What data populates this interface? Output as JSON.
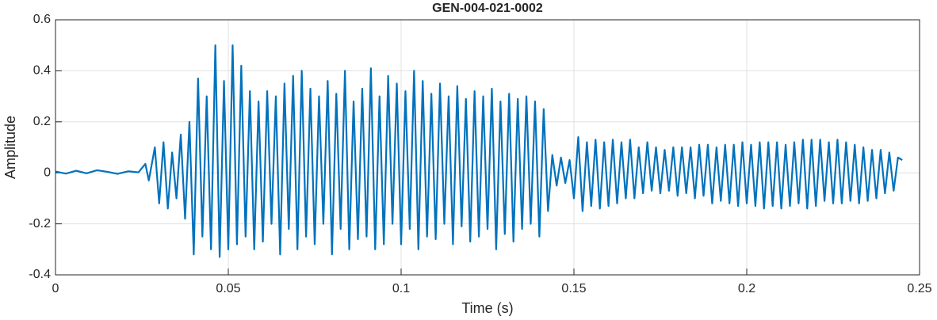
{
  "chart_data": {
    "type": "line",
    "title": "GEN-004-021-0002",
    "xlabel": "Time (s)",
    "ylabel": "Amplitude",
    "color": "#0072bd",
    "grid": true,
    "xlim": [
      0,
      0.25
    ],
    "ylim": [
      -0.4,
      0.6
    ],
    "xticks": [
      0,
      0.05,
      0.1,
      0.15,
      0.2,
      0.25
    ],
    "yticks": [
      -0.4,
      -0.2,
      0,
      0.2,
      0.4,
      0.6
    ],
    "x": [
      0,
      0.003,
      0.006,
      0.009,
      0.012,
      0.015,
      0.018,
      0.021,
      0.024,
      0.026,
      0.027,
      0.02875,
      0.03,
      0.03125,
      0.0325,
      0.03375,
      0.035,
      0.03625,
      0.0375,
      0.03875,
      0.04,
      0.04125,
      0.0425,
      0.04375,
      0.045,
      0.04625,
      0.0475,
      0.04875,
      0.05,
      0.05125,
      0.0525,
      0.05375,
      0.055,
      0.05625,
      0.0575,
      0.05875,
      0.06,
      0.06125,
      0.0625,
      0.06375,
      0.065,
      0.06625,
      0.0675,
      0.06875,
      0.07,
      0.07125,
      0.0725,
      0.07375,
      0.075,
      0.07625,
      0.0775,
      0.07875,
      0.08,
      0.08125,
      0.0825,
      0.08375,
      0.085,
      0.08625,
      0.0875,
      0.08875,
      0.09,
      0.09125,
      0.0925,
      0.09375,
      0.095,
      0.09625,
      0.0975,
      0.09875,
      0.1,
      0.10125,
      0.1025,
      0.10375,
      0.105,
      0.10625,
      0.1075,
      0.10875,
      0.11,
      0.11125,
      0.1125,
      0.11375,
      0.115,
      0.11625,
      0.1175,
      0.11875,
      0.12,
      0.12125,
      0.1225,
      0.12375,
      0.125,
      0.12625,
      0.1275,
      0.12875,
      0.13,
      0.13125,
      0.1325,
      0.13375,
      0.135,
      0.13625,
      0.1375,
      0.13875,
      0.14,
      0.14125,
      0.1425,
      0.14375,
      0.145,
      0.14625,
      0.1475,
      0.14875,
      0.15,
      0.15125,
      0.1525,
      0.15375,
      0.155,
      0.15625,
      0.1575,
      0.15875,
      0.16,
      0.16125,
      0.1625,
      0.16375,
      0.165,
      0.16625,
      0.1675,
      0.16875,
      0.17,
      0.17125,
      0.1725,
      0.17375,
      0.175,
      0.17625,
      0.1775,
      0.17875,
      0.18,
      0.18125,
      0.1825,
      0.18375,
      0.185,
      0.18625,
      0.1875,
      0.18875,
      0.19,
      0.19125,
      0.1925,
      0.19375,
      0.195,
      0.19625,
      0.1975,
      0.19875,
      0.2,
      0.20125,
      0.2025,
      0.20375,
      0.205,
      0.20625,
      0.2075,
      0.20875,
      0.21,
      0.21125,
      0.2125,
      0.21375,
      0.215,
      0.21625,
      0.2175,
      0.21875,
      0.22,
      0.22125,
      0.2225,
      0.22375,
      0.225,
      0.22625,
      0.2275,
      0.22875,
      0.23,
      0.23125,
      0.2325,
      0.23375,
      0.235,
      0.23625,
      0.2375,
      0.23875,
      0.24,
      0.24125,
      0.2425,
      0.24375,
      0.245
    ],
    "values": [
      0.005,
      -0.003,
      0.008,
      -0.002,
      0.01,
      0.004,
      -0.004,
      0.006,
      0.002,
      0.035,
      -0.03,
      0.1,
      -0.12,
      0.12,
      -0.14,
      0.08,
      -0.1,
      0.15,
      -0.18,
      0.2,
      -0.32,
      0.37,
      -0.25,
      0.3,
      -0.3,
      0.5,
      -0.33,
      0.36,
      -0.3,
      0.5,
      -0.28,
      0.42,
      -0.25,
      0.32,
      -0.3,
      0.28,
      -0.27,
      0.32,
      -0.2,
      0.3,
      -0.32,
      0.35,
      -0.22,
      0.38,
      -0.3,
      0.4,
      -0.25,
      0.33,
      -0.28,
      0.3,
      -0.2,
      0.36,
      -0.32,
      0.31,
      -0.22,
      0.4,
      -0.3,
      0.28,
      -0.26,
      0.33,
      -0.25,
      0.41,
      -0.3,
      0.3,
      -0.28,
      0.38,
      -0.2,
      0.35,
      -0.28,
      0.32,
      -0.22,
      0.4,
      -0.3,
      0.36,
      -0.25,
      0.31,
      -0.26,
      0.35,
      -0.2,
      0.3,
      -0.28,
      0.34,
      -0.21,
      0.29,
      -0.27,
      0.32,
      -0.25,
      0.3,
      -0.22,
      0.33,
      -0.3,
      0.28,
      -0.24,
      0.31,
      -0.27,
      0.29,
      -0.22,
      0.3,
      -0.2,
      0.28,
      -0.25,
      0.25,
      -0.15,
      0.07,
      -0.05,
      0.06,
      -0.04,
      0.05,
      -0.1,
      0.14,
      -0.15,
      0.12,
      -0.13,
      0.13,
      -0.14,
      0.12,
      -0.13,
      0.13,
      -0.12,
      0.12,
      -0.1,
      0.13,
      -0.1,
      0.1,
      -0.08,
      0.12,
      -0.07,
      0.1,
      -0.08,
      0.09,
      -0.07,
      0.1,
      -0.09,
      0.1,
      -0.08,
      0.1,
      -0.1,
      0.11,
      -0.09,
      0.11,
      -0.12,
      0.1,
      -0.11,
      0.11,
      -0.12,
      0.11,
      -0.13,
      0.12,
      -0.12,
      0.11,
      -0.13,
      0.12,
      -0.14,
      0.12,
      -0.13,
      0.12,
      -0.14,
      0.11,
      -0.13,
      0.12,
      -0.12,
      0.13,
      -0.14,
      0.13,
      -0.13,
      0.13,
      -0.11,
      0.12,
      -0.12,
      0.13,
      -0.12,
      0.12,
      -0.11,
      0.11,
      -0.12,
      0.1,
      -0.11,
      0.09,
      -0.1,
      0.09,
      -0.08,
      0.08,
      -0.07,
      0.06,
      0.05
    ]
  }
}
